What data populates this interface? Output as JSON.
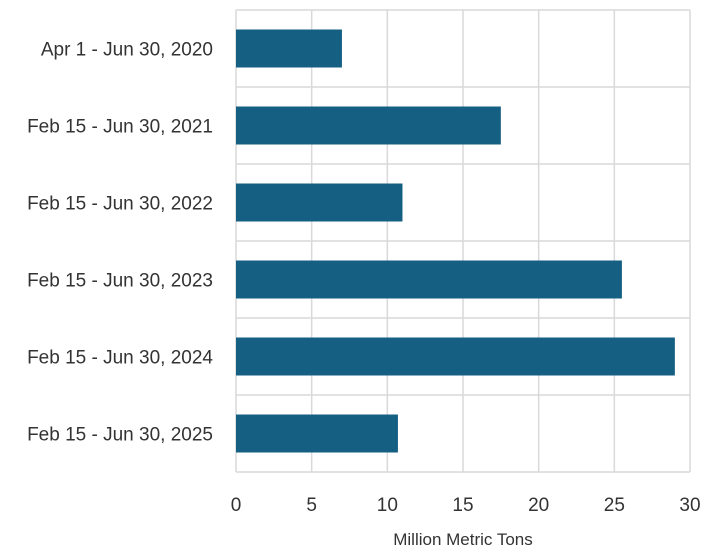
{
  "chart_data": {
    "type": "bar",
    "orientation": "horizontal",
    "categories": [
      "Apr 1 - Jun 30, 2020",
      "Feb 15 - Jun 30, 2021",
      "Feb 15 - Jun 30, 2022",
      "Feb 15 - Jun 30, 2023",
      "Feb 15 - Jun 30, 2024",
      "Feb 15 - Jun 30, 2025"
    ],
    "values": [
      7.0,
      17.5,
      11.0,
      25.5,
      29.0,
      10.7
    ],
    "title": "",
    "xlabel": "Million Metric Tons",
    "ylabel": "",
    "xlim": [
      0,
      30
    ],
    "xticks": [
      "0",
      "5",
      "10",
      "15",
      "20",
      "25",
      "30"
    ],
    "grid": true,
    "legend": "none",
    "bar_color": "#155f82",
    "grid_color": "#d9d9d9"
  }
}
